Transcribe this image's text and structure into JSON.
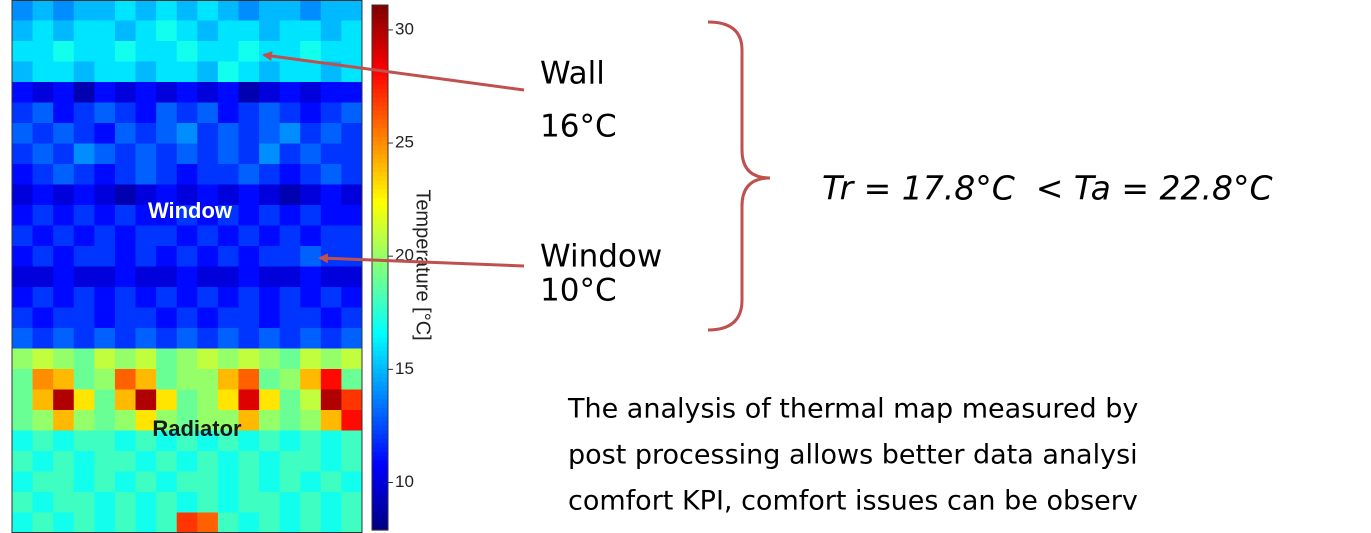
{
  "chart_data": {
    "type": "heatmap",
    "colormap": "jet",
    "colorbar_label": "Temperature [°C]",
    "ylim": [
      7.9,
      31.1
    ],
    "yticks": [
      10,
      15,
      20,
      25,
      30
    ],
    "values": [
      [
        14,
        15,
        14,
        15,
        15,
        16,
        15,
        16,
        15,
        16,
        15,
        14,
        15,
        15,
        14,
        15,
        15
      ],
      [
        15,
        16,
        15,
        16,
        16,
        15,
        16,
        17,
        16,
        15,
        16,
        16,
        15,
        16,
        16,
        15,
        16
      ],
      [
        16,
        16,
        17,
        16,
        16,
        17,
        16,
        16,
        17,
        16,
        16,
        17,
        16,
        16,
        17,
        16,
        16
      ],
      [
        15,
        16,
        16,
        15,
        16,
        16,
        15,
        16,
        16,
        15,
        17,
        16,
        15,
        16,
        16,
        15,
        16
      ],
      [
        11,
        10,
        11,
        9,
        11,
        10,
        11,
        10,
        11,
        10,
        11,
        9,
        10,
        11,
        10,
        11,
        11
      ],
      [
        12,
        13,
        11,
        12,
        13,
        12,
        11,
        13,
        12,
        13,
        11,
        12,
        13,
        12,
        11,
        12,
        13
      ],
      [
        13,
        12,
        13,
        12,
        11,
        13,
        12,
        13,
        14,
        12,
        13,
        12,
        13,
        14,
        12,
        13,
        12
      ],
      [
        12,
        13,
        12,
        14,
        13,
        12,
        13,
        12,
        13,
        12,
        13,
        12,
        14,
        12,
        13,
        12,
        12
      ],
      [
        11,
        12,
        13,
        12,
        11,
        12,
        13,
        12,
        11,
        12,
        12,
        13,
        12,
        11,
        12,
        13,
        12
      ],
      [
        10,
        11,
        10,
        11,
        10,
        9,
        10,
        11,
        10,
        11,
        10,
        11,
        10,
        9,
        10,
        11,
        10
      ],
      [
        11,
        12,
        11,
        12,
        11,
        12,
        11,
        11,
        12,
        11,
        12,
        11,
        12,
        11,
        12,
        11,
        11
      ],
      [
        12,
        11,
        12,
        11,
        12,
        11,
        12,
        12,
        11,
        12,
        11,
        12,
        11,
        12,
        11,
        12,
        12
      ],
      [
        11,
        12,
        11,
        12,
        12,
        11,
        12,
        11,
        12,
        11,
        12,
        11,
        12,
        12,
        13,
        12,
        12
      ],
      [
        10,
        10,
        11,
        10,
        10,
        11,
        10,
        10,
        11,
        10,
        10,
        11,
        10,
        10,
        11,
        10,
        10
      ],
      [
        11,
        12,
        11,
        12,
        11,
        12,
        11,
        12,
        11,
        12,
        11,
        12,
        11,
        12,
        11,
        12,
        11
      ],
      [
        12,
        11,
        12,
        12,
        11,
        12,
        12,
        11,
        12,
        11,
        12,
        12,
        11,
        12,
        12,
        11,
        12
      ],
      [
        13,
        12,
        13,
        12,
        13,
        12,
        13,
        12,
        13,
        12,
        13,
        12,
        13,
        12,
        13,
        12,
        13
      ],
      [
        20,
        21,
        20,
        19,
        21,
        20,
        21,
        19,
        20,
        21,
        20,
        21,
        20,
        19,
        21,
        20,
        21
      ],
      [
        19,
        25,
        24,
        19,
        20,
        26,
        24,
        19,
        20,
        20,
        24,
        26,
        19,
        20,
        24,
        28,
        19
      ],
      [
        19,
        24,
        30,
        23,
        19,
        24,
        30,
        23,
        19,
        20,
        23,
        29,
        23,
        19,
        21,
        30,
        27
      ],
      [
        19,
        20,
        24,
        20,
        19,
        20,
        23,
        20,
        19,
        20,
        20,
        24,
        20,
        19,
        20,
        24,
        28
      ],
      [
        17,
        18,
        17,
        18,
        18,
        17,
        18,
        17,
        18,
        17,
        18,
        17,
        18,
        17,
        18,
        17,
        18
      ],
      [
        18,
        17,
        18,
        17,
        18,
        18,
        17,
        18,
        17,
        18,
        17,
        18,
        17,
        18,
        18,
        17,
        18
      ],
      [
        17,
        18,
        18,
        17,
        18,
        17,
        18,
        17,
        18,
        18,
        17,
        18,
        17,
        18,
        17,
        18,
        17
      ],
      [
        18,
        17,
        18,
        18,
        17,
        18,
        17,
        18,
        17,
        18,
        17,
        18,
        18,
        17,
        18,
        17,
        18
      ],
      [
        17,
        18,
        17,
        18,
        17,
        18,
        17,
        18,
        27,
        26,
        18,
        17,
        18,
        17,
        18,
        17,
        18
      ]
    ],
    "region_labels": [
      "Window",
      "Radiator"
    ]
  },
  "callouts": [
    {
      "label": "Wall",
      "value": "16°C"
    },
    {
      "label": "Window",
      "value": "10°C"
    }
  ],
  "equation": "Tr = 17.8°C  < Ta = 22.8°C",
  "paragraph": [
    "The analysis of thermal map measured by",
    "post processing allows better data analysi",
    "comfort KPI, comfort issues can be observ"
  ]
}
